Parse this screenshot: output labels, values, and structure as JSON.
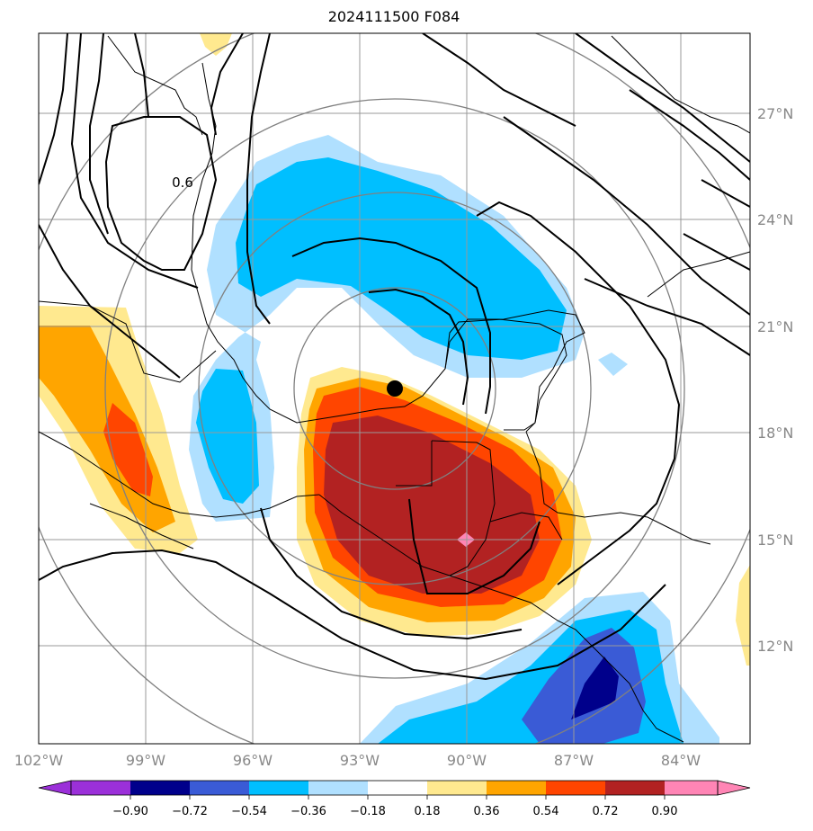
{
  "title": "2024111500 F084",
  "map": {
    "lon_range": [
      -102,
      -82
    ],
    "lat_range": [
      9.75,
      29.75
    ],
    "lon_ticks": [
      {
        "value": -102,
        "label": "102°W"
      },
      {
        "value": -99,
        "label": "99°W"
      },
      {
        "value": -96,
        "label": "96°W"
      },
      {
        "value": -93,
        "label": "93°W"
      },
      {
        "value": -90,
        "label": "90°W"
      },
      {
        "value": -87,
        "label": "87°W"
      },
      {
        "value": -84,
        "label": "84°W"
      }
    ],
    "lat_ticks": [
      {
        "value": 12,
        "label": "12°N"
      },
      {
        "value": 15,
        "label": "15°N"
      },
      {
        "value": 18,
        "label": "18°N"
      },
      {
        "value": 21,
        "label": "21°N"
      },
      {
        "value": 24,
        "label": "24°N"
      },
      {
        "value": 27,
        "label": "27°N"
      }
    ],
    "contour_label": "0.6",
    "center_marker": {
      "lon": -92.0,
      "lat": 19.2
    },
    "pink_marker": {
      "lon": -90.0,
      "lat": 15.0
    },
    "ring_center": {
      "lon": -92.0,
      "lat": 19.2
    },
    "ring_radii_deg": [
      2.5,
      5,
      7.5,
      10
    ]
  },
  "colorbar": {
    "colors": [
      "#9b30d9",
      "#00008b",
      "#3a5bd6",
      "#00bfff",
      "#b0e0ff",
      "#ffffff",
      "#ffe98f",
      "#ffa500",
      "#ff4500",
      "#b22222",
      "#ff85b5"
    ],
    "tick_labels": [
      "−0.90",
      "−0.72",
      "−0.54",
      "−0.36",
      "−0.18",
      "0.18",
      "0.36",
      "0.54",
      "0.72",
      "0.90"
    ]
  },
  "colors": {
    "land_line": "#000000",
    "grid": "#999999",
    "rings": "#808080"
  }
}
